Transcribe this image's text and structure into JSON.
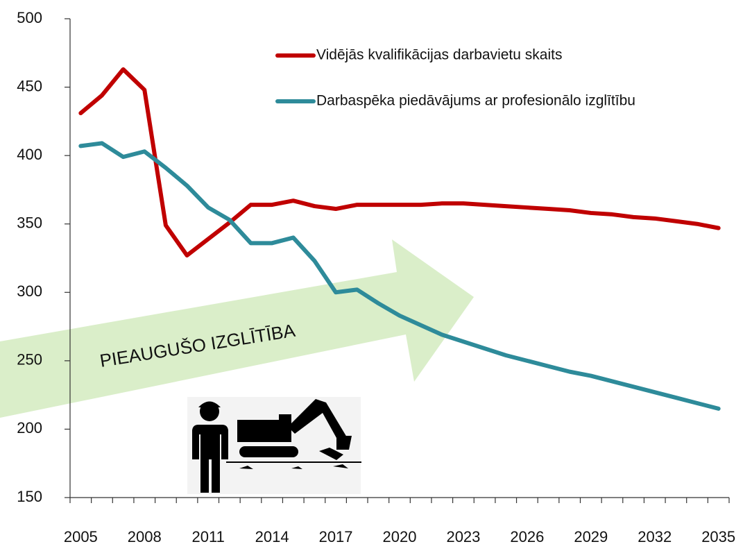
{
  "chart_data": {
    "type": "line",
    "annotation": "PIEAUGUŠO IZGLĪTĪBA",
    "categories": [
      "2005",
      null,
      null,
      "2008",
      null,
      null,
      "2011",
      null,
      null,
      "2014",
      null,
      null,
      "2017",
      null,
      null,
      "2020",
      null,
      null,
      "2023",
      null,
      null,
      "2026",
      null,
      null,
      "2029",
      null,
      null,
      "2032",
      null,
      null,
      "2035"
    ],
    "ylim": [
      150,
      500
    ],
    "yticks": [
      150,
      200,
      250,
      300,
      350,
      400,
      450,
      500
    ],
    "legend": "top",
    "series": [
      {
        "name": "Vidējās kvalifikācijas darbavietu skaits",
        "color": "#c00000",
        "values": [
          431,
          444,
          463,
          448,
          349,
          327,
          339,
          351,
          364,
          364,
          367,
          363,
          361,
          364,
          364,
          364,
          364,
          365,
          365,
          364,
          363,
          362,
          361,
          360,
          358,
          357,
          355,
          354,
          352,
          350,
          347
        ]
      },
      {
        "name": "Darbaspēka piedāvājums ar profesionālo izglītību",
        "color": "#2e8b9a",
        "values": [
          407,
          409,
          399,
          403,
          391,
          378,
          362,
          353,
          336,
          336,
          340,
          323,
          300,
          302,
          292,
          283,
          276,
          269,
          264,
          259,
          254,
          250,
          246,
          242,
          239,
          235,
          231,
          227,
          223,
          219,
          215
        ]
      }
    ]
  }
}
